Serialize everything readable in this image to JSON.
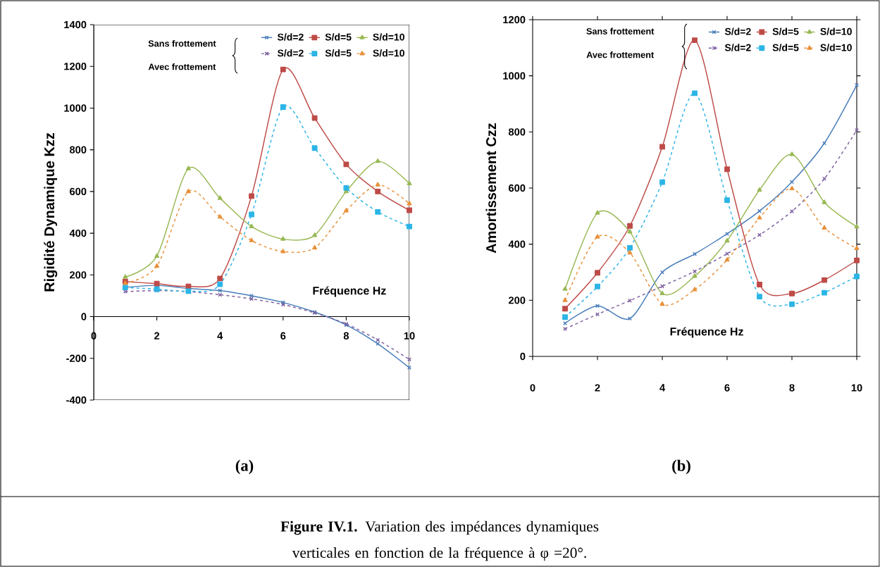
{
  "chart_data": [
    {
      "type": "line",
      "xlabel": "Fréquence Hz",
      "ylabel": "Rigidité Dynamique Kzz",
      "x": [
        1,
        2,
        3,
        4,
        5,
        6,
        7,
        8,
        9,
        10
      ],
      "xlim": [
        0,
        10
      ],
      "xticks": [
        0,
        2,
        4,
        6,
        8,
        10
      ],
      "ylim": [
        -400,
        1400
      ],
      "yticks": [
        -400,
        -200,
        0,
        200,
        400,
        600,
        800,
        1000,
        1200,
        1400
      ],
      "legend": "top right",
      "series": [
        {
          "name": "S/d=2",
          "color": "#4a7ebb",
          "marker": "cross",
          "line_style": "solid",
          "values": [
            140,
            150,
            135,
            125,
            100,
            68,
            22,
            -40,
            -130,
            -245
          ]
        },
        {
          "name": "S/d=5",
          "color": "#be4b48",
          "marker": "square",
          "line_style": "solid",
          "values": [
            168,
            158,
            145,
            183,
            578,
            1185,
            952,
            730,
            600,
            510
          ]
        },
        {
          "name": "S/d=10",
          "color": "#98b954",
          "marker": "triangle",
          "line_style": "solid",
          "values": [
            190,
            290,
            710,
            568,
            432,
            372,
            390,
            600,
            745,
            638
          ]
        },
        {
          "name": "S/d=2",
          "color": "#7d60a0",
          "marker": "cross",
          "line_style": "dashed",
          "values": [
            120,
            125,
            120,
            105,
            85,
            58,
            18,
            -35,
            -112,
            -205
          ]
        },
        {
          "name": "S/d=5",
          "color": "#2cb5e6",
          "marker": "square",
          "line_style": "dashed",
          "values": [
            140,
            132,
            122,
            155,
            490,
            1005,
            808,
            617,
            502,
            432
          ]
        },
        {
          "name": "S/d=10",
          "color": "#e8913a",
          "marker": "triangle",
          "line_style": "dashed",
          "values": [
            160,
            242,
            600,
            478,
            365,
            312,
            330,
            508,
            632,
            542
          ]
        }
      ],
      "annotations": [
        "Sans frottement",
        "Avec  frottement",
        "(a)"
      ]
    },
    {
      "type": "line",
      "xlabel": "Fréquence Hz",
      "ylabel": "Amortissement Czz",
      "x": [
        1,
        2,
        3,
        4,
        5,
        6,
        7,
        8,
        9,
        10
      ],
      "xlim": [
        0,
        10
      ],
      "xticks": [
        0,
        2,
        4,
        6,
        8,
        10
      ],
      "ylim": [
        0,
        1200
      ],
      "yticks": [
        0,
        200,
        400,
        600,
        800,
        1000,
        1200
      ],
      "legend": "top right",
      "series": [
        {
          "name": "S/d=2",
          "color": "#4a7ebb",
          "marker": "cross",
          "line_style": "solid",
          "values": [
            118,
            180,
            135,
            300,
            365,
            437,
            518,
            622,
            760,
            967
          ]
        },
        {
          "name": "S/d=5",
          "color": "#be4b48",
          "marker": "square",
          "line_style": "solid",
          "values": [
            170,
            298,
            465,
            747,
            1127,
            667,
            256,
            224,
            272,
            342
          ]
        },
        {
          "name": "S/d=10",
          "color": "#98b954",
          "marker": "triangle",
          "line_style": "solid",
          "values": [
            240,
            511,
            444,
            224,
            286,
            412,
            593,
            720,
            549,
            462
          ]
        },
        {
          "name": "S/d=2",
          "color": "#7d60a0",
          "marker": "cross",
          "line_style": "dashed",
          "values": [
            98,
            150,
            199,
            250,
            303,
            366,
            433,
            517,
            633,
            806
          ]
        },
        {
          "name": "S/d=5",
          "color": "#2cb5e6",
          "marker": "square",
          "line_style": "dashed",
          "values": [
            140,
            249,
            387,
            621,
            938,
            557,
            213,
            186,
            227,
            285
          ]
        },
        {
          "name": "S/d=10",
          "color": "#e8913a",
          "marker": "triangle",
          "line_style": "dashed",
          "values": [
            200,
            426,
            369,
            186,
            238,
            344,
            494,
            598,
            458,
            385
          ]
        }
      ],
      "annotations": [
        "Sans frottement",
        "Avec frottement",
        "(b)",
        "**Figure IV.1.** Variation des impédances dynamiques verticales en fonction de la fréquence à φ =20°."
      ]
    }
  ]
}
